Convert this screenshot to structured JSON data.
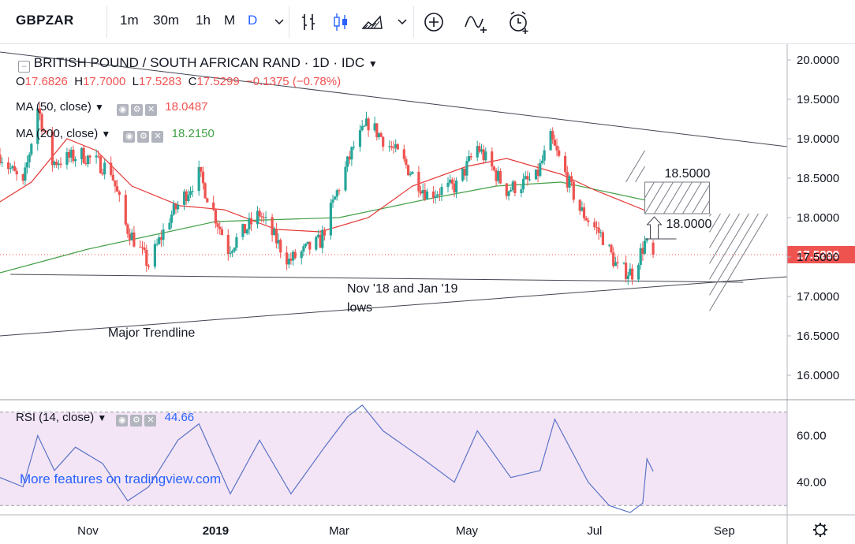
{
  "toolbar": {
    "symbol": "GBPZAR",
    "intervals": [
      "1m",
      "30m",
      "1h",
      "M",
      "D"
    ],
    "active_interval": "D",
    "icons": [
      "chevron-down-icon",
      "bar-chart-icon",
      "candles-icon",
      "area-chart-icon",
      "chevron-down-icon",
      "add-indicator-icon",
      "compare-icon",
      "alert-icon"
    ]
  },
  "legend": {
    "title": "BRITISH POUND / SOUTH AFRICAN RAND · 1D · IDC",
    "open_label": "O",
    "open": "17.6826",
    "high_label": "H",
    "high": "17.7000",
    "low_label": "L",
    "low": "17.5283",
    "close_label": "C",
    "close": "17.5299",
    "change": "−0.1375 (−0.78%)",
    "ma50_label": "MA (50, close)",
    "ma50_value": "18.0487",
    "ma200_label": "MA (200, close)",
    "ma200_value": "18.2150",
    "rsi_label": "RSI (14, close)",
    "rsi_value": "44.66"
  },
  "watermark": "More features on tradingview.com",
  "colors": {
    "up": "#26a69a",
    "down": "#ef5350",
    "ma50": "#e53935",
    "ma200": "#43a047",
    "rsi_line": "#5b73c7",
    "rsi_band": "#f3e5f5",
    "accent": "#2962ff"
  },
  "chart_data": [
    {
      "type": "candlestick",
      "title": "BRITISH POUND / SOUTH AFRICAN RAND · 1D · IDC",
      "ylim": [
        15.7,
        20.2
      ],
      "y_ticks": [
        "20.0000",
        "19.5000",
        "19.0000",
        "18.5000",
        "18.0000",
        "17.5000",
        "17.0000",
        "16.5000",
        "16.0000"
      ],
      "x_ticks": [
        "Nov",
        "2019",
        "Mar",
        "May",
        "Jul",
        "Sep"
      ],
      "last_price": "17.5299",
      "candle_anchors": [
        {
          "date": "2018-09-20",
          "close": 18.8
        },
        {
          "date": "2018-10-01",
          "close": 18.4
        },
        {
          "date": "2018-10-08",
          "close": 19.4
        },
        {
          "date": "2018-10-15",
          "close": 18.7
        },
        {
          "date": "2018-10-29",
          "close": 18.8
        },
        {
          "date": "2018-11-12",
          "close": 18.6
        },
        {
          "date": "2018-11-19",
          "close": 17.9
        },
        {
          "date": "2018-11-30",
          "close": 17.4
        },
        {
          "date": "2018-12-10",
          "close": 18.0
        },
        {
          "date": "2018-12-24",
          "close": 18.55
        },
        {
          "date": "2019-01-07",
          "close": 17.6
        },
        {
          "date": "2019-01-22",
          "close": 18.05
        },
        {
          "date": "2019-02-05",
          "close": 17.45
        },
        {
          "date": "2019-02-20",
          "close": 17.7
        },
        {
          "date": "2019-03-01",
          "close": 18.4
        },
        {
          "date": "2019-03-08",
          "close": 18.9
        },
        {
          "date": "2019-03-15",
          "close": 19.2
        },
        {
          "date": "2019-03-29",
          "close": 18.8
        },
        {
          "date": "2019-04-12",
          "close": 18.3
        },
        {
          "date": "2019-04-26",
          "close": 18.4
        },
        {
          "date": "2019-05-06",
          "close": 18.9
        },
        {
          "date": "2019-05-20",
          "close": 18.35
        },
        {
          "date": "2019-06-03",
          "close": 18.5
        },
        {
          "date": "2019-06-10",
          "close": 19.0
        },
        {
          "date": "2019-06-24",
          "close": 18.1
        },
        {
          "date": "2019-07-05",
          "close": 17.75
        },
        {
          "date": "2019-07-12",
          "close": 17.35
        },
        {
          "date": "2019-07-19",
          "close": 17.3
        },
        {
          "date": "2019-07-25",
          "close": 17.68
        },
        {
          "date": "2019-07-29",
          "close": 17.53
        }
      ],
      "ma50": [
        {
          "date": "2018-09-20",
          "value": 18.2
        },
        {
          "date": "2018-10-05",
          "value": 18.45
        },
        {
          "date": "2018-10-22",
          "value": 19.0
        },
        {
          "date": "2018-11-05",
          "value": 18.85
        },
        {
          "date": "2018-11-22",
          "value": 18.4
        },
        {
          "date": "2018-12-15",
          "value": 18.15
        },
        {
          "date": "2019-01-05",
          "value": 18.1
        },
        {
          "date": "2019-01-30",
          "value": 17.85
        },
        {
          "date": "2019-02-20",
          "value": 17.82
        },
        {
          "date": "2019-03-15",
          "value": 18.0
        },
        {
          "date": "2019-04-05",
          "value": 18.4
        },
        {
          "date": "2019-05-01",
          "value": 18.65
        },
        {
          "date": "2019-05-20",
          "value": 18.75
        },
        {
          "date": "2019-06-15",
          "value": 18.55
        },
        {
          "date": "2019-07-01",
          "value": 18.35
        },
        {
          "date": "2019-07-29",
          "value": 18.05
        }
      ],
      "ma200": [
        {
          "date": "2018-09-20",
          "value": 17.3
        },
        {
          "date": "2018-11-01",
          "value": 17.6
        },
        {
          "date": "2019-01-01",
          "value": 17.95
        },
        {
          "date": "2019-03-01",
          "value": 18.0
        },
        {
          "date": "2019-04-15",
          "value": 18.25
        },
        {
          "date": "2019-05-15",
          "value": 18.4
        },
        {
          "date": "2019-06-15",
          "value": 18.45
        },
        {
          "date": "2019-07-29",
          "value": 18.2
        }
      ],
      "trendlines": [
        {
          "name": "upper",
          "from": {
            "date": "2018-09-20",
            "value": 20.1
          },
          "to": {
            "date": "2019-10-01",
            "value": 18.9
          }
        },
        {
          "name": "support",
          "from": {
            "date": "2018-09-25",
            "value": 17.28
          },
          "to": {
            "date": "2019-09-10",
            "value": 17.18
          }
        },
        {
          "name": "major",
          "from": {
            "date": "2018-09-20",
            "value": 16.5
          },
          "to": {
            "date": "2019-10-01",
            "value": 17.25
          }
        }
      ],
      "annotations": [
        {
          "text": "18.5000",
          "value": 18.5
        },
        {
          "text": "18.0000",
          "value": 18.0
        },
        {
          "text": "Nov '18 and Jan '19",
          "line2": "lows"
        },
        {
          "text": "Major Trendline"
        }
      ],
      "target_zone": {
        "from": 18.05,
        "to": 18.45
      }
    },
    {
      "type": "line",
      "title": "RSI (14, close)",
      "ylim": [
        25,
        75
      ],
      "y_ticks": [
        "60.00",
        "40.00"
      ],
      "bands": [
        30,
        70
      ],
      "last_value": 44.66,
      "points": [
        {
          "date": "2018-09-20",
          "value": 42
        },
        {
          "date": "2018-10-01",
          "value": 38
        },
        {
          "date": "2018-10-08",
          "value": 60
        },
        {
          "date": "2018-10-16",
          "value": 45
        },
        {
          "date": "2018-10-26",
          "value": 55
        },
        {
          "date": "2018-11-08",
          "value": 48
        },
        {
          "date": "2018-11-20",
          "value": 32
        },
        {
          "date": "2018-11-30",
          "value": 38
        },
        {
          "date": "2018-12-14",
          "value": 58
        },
        {
          "date": "2018-12-24",
          "value": 65
        },
        {
          "date": "2019-01-08",
          "value": 35
        },
        {
          "date": "2019-01-22",
          "value": 58
        },
        {
          "date": "2019-02-06",
          "value": 35
        },
        {
          "date": "2019-02-22",
          "value": 55
        },
        {
          "date": "2019-03-05",
          "value": 68
        },
        {
          "date": "2019-03-12",
          "value": 73
        },
        {
          "date": "2019-03-22",
          "value": 62
        },
        {
          "date": "2019-04-10",
          "value": 50
        },
        {
          "date": "2019-04-25",
          "value": 40
        },
        {
          "date": "2019-05-06",
          "value": 62
        },
        {
          "date": "2019-05-22",
          "value": 42
        },
        {
          "date": "2019-06-05",
          "value": 45
        },
        {
          "date": "2019-06-12",
          "value": 67
        },
        {
          "date": "2019-06-28",
          "value": 40
        },
        {
          "date": "2019-07-08",
          "value": 30
        },
        {
          "date": "2019-07-18",
          "value": 27
        },
        {
          "date": "2019-07-24",
          "value": 31
        },
        {
          "date": "2019-07-26",
          "value": 50
        },
        {
          "date": "2019-07-29",
          "value": 44.66
        }
      ]
    }
  ]
}
